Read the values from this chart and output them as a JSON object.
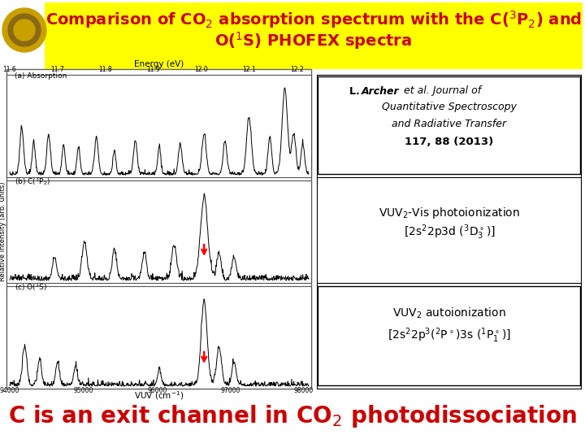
{
  "background_color": "#FFFF00",
  "title_color": "#CC0000",
  "title_fontsize": 14,
  "title_line1": "Comparison of CO$_2$ absorption spectrum with the C($^3$P$_2$) and",
  "title_line2": "O($^1$S) PHOFEX spectra",
  "footer_text": "C is an exit channel in CO$_2$ photodissociation",
  "footer_color": "#CC0000",
  "footer_fontsize": 20,
  "slide_bg": "#FFFFFF",
  "logo_color": "#DAA520",
  "ref_line1_bold": "L. Archer",
  "ref_line1_italic": " et al. Journal of",
  "ref_line2": "Quantitative Spectroscopy",
  "ref_line3": "and Radiative Transfer",
  "ref_line4": "117, 88 (2013)",
  "box1_line1": "VUV$_2$-Vis photoionization",
  "box1_line2": "[2s$^2$2p3d ($^3$D$^\\circ_3$)]",
  "box2_line1": "VUV$_2$ autoionization",
  "box2_line2": "[2s$^2$2p$^3$($^2$P$^\\circ$)3s ($^1$P$^\\circ_1$)]",
  "energy_label": "Energy (eV)",
  "vuv_label": "VUV (cm$^{-1}$)",
  "yaxis_label": "Relative intensity (arb. units)",
  "energy_ticks": [
    "11.6",
    "11.7",
    "11.8",
    "11.9",
    "12.0",
    "12.1",
    "12.2"
  ],
  "vuv_ticks": [
    "94000",
    "95000",
    "96000",
    "97000",
    "98000"
  ],
  "panel_a_label": "(a) Absorption",
  "panel_b_label": "(b) C($^3$P$_2$)",
  "panel_c_label": "(c) O($^1$S)"
}
